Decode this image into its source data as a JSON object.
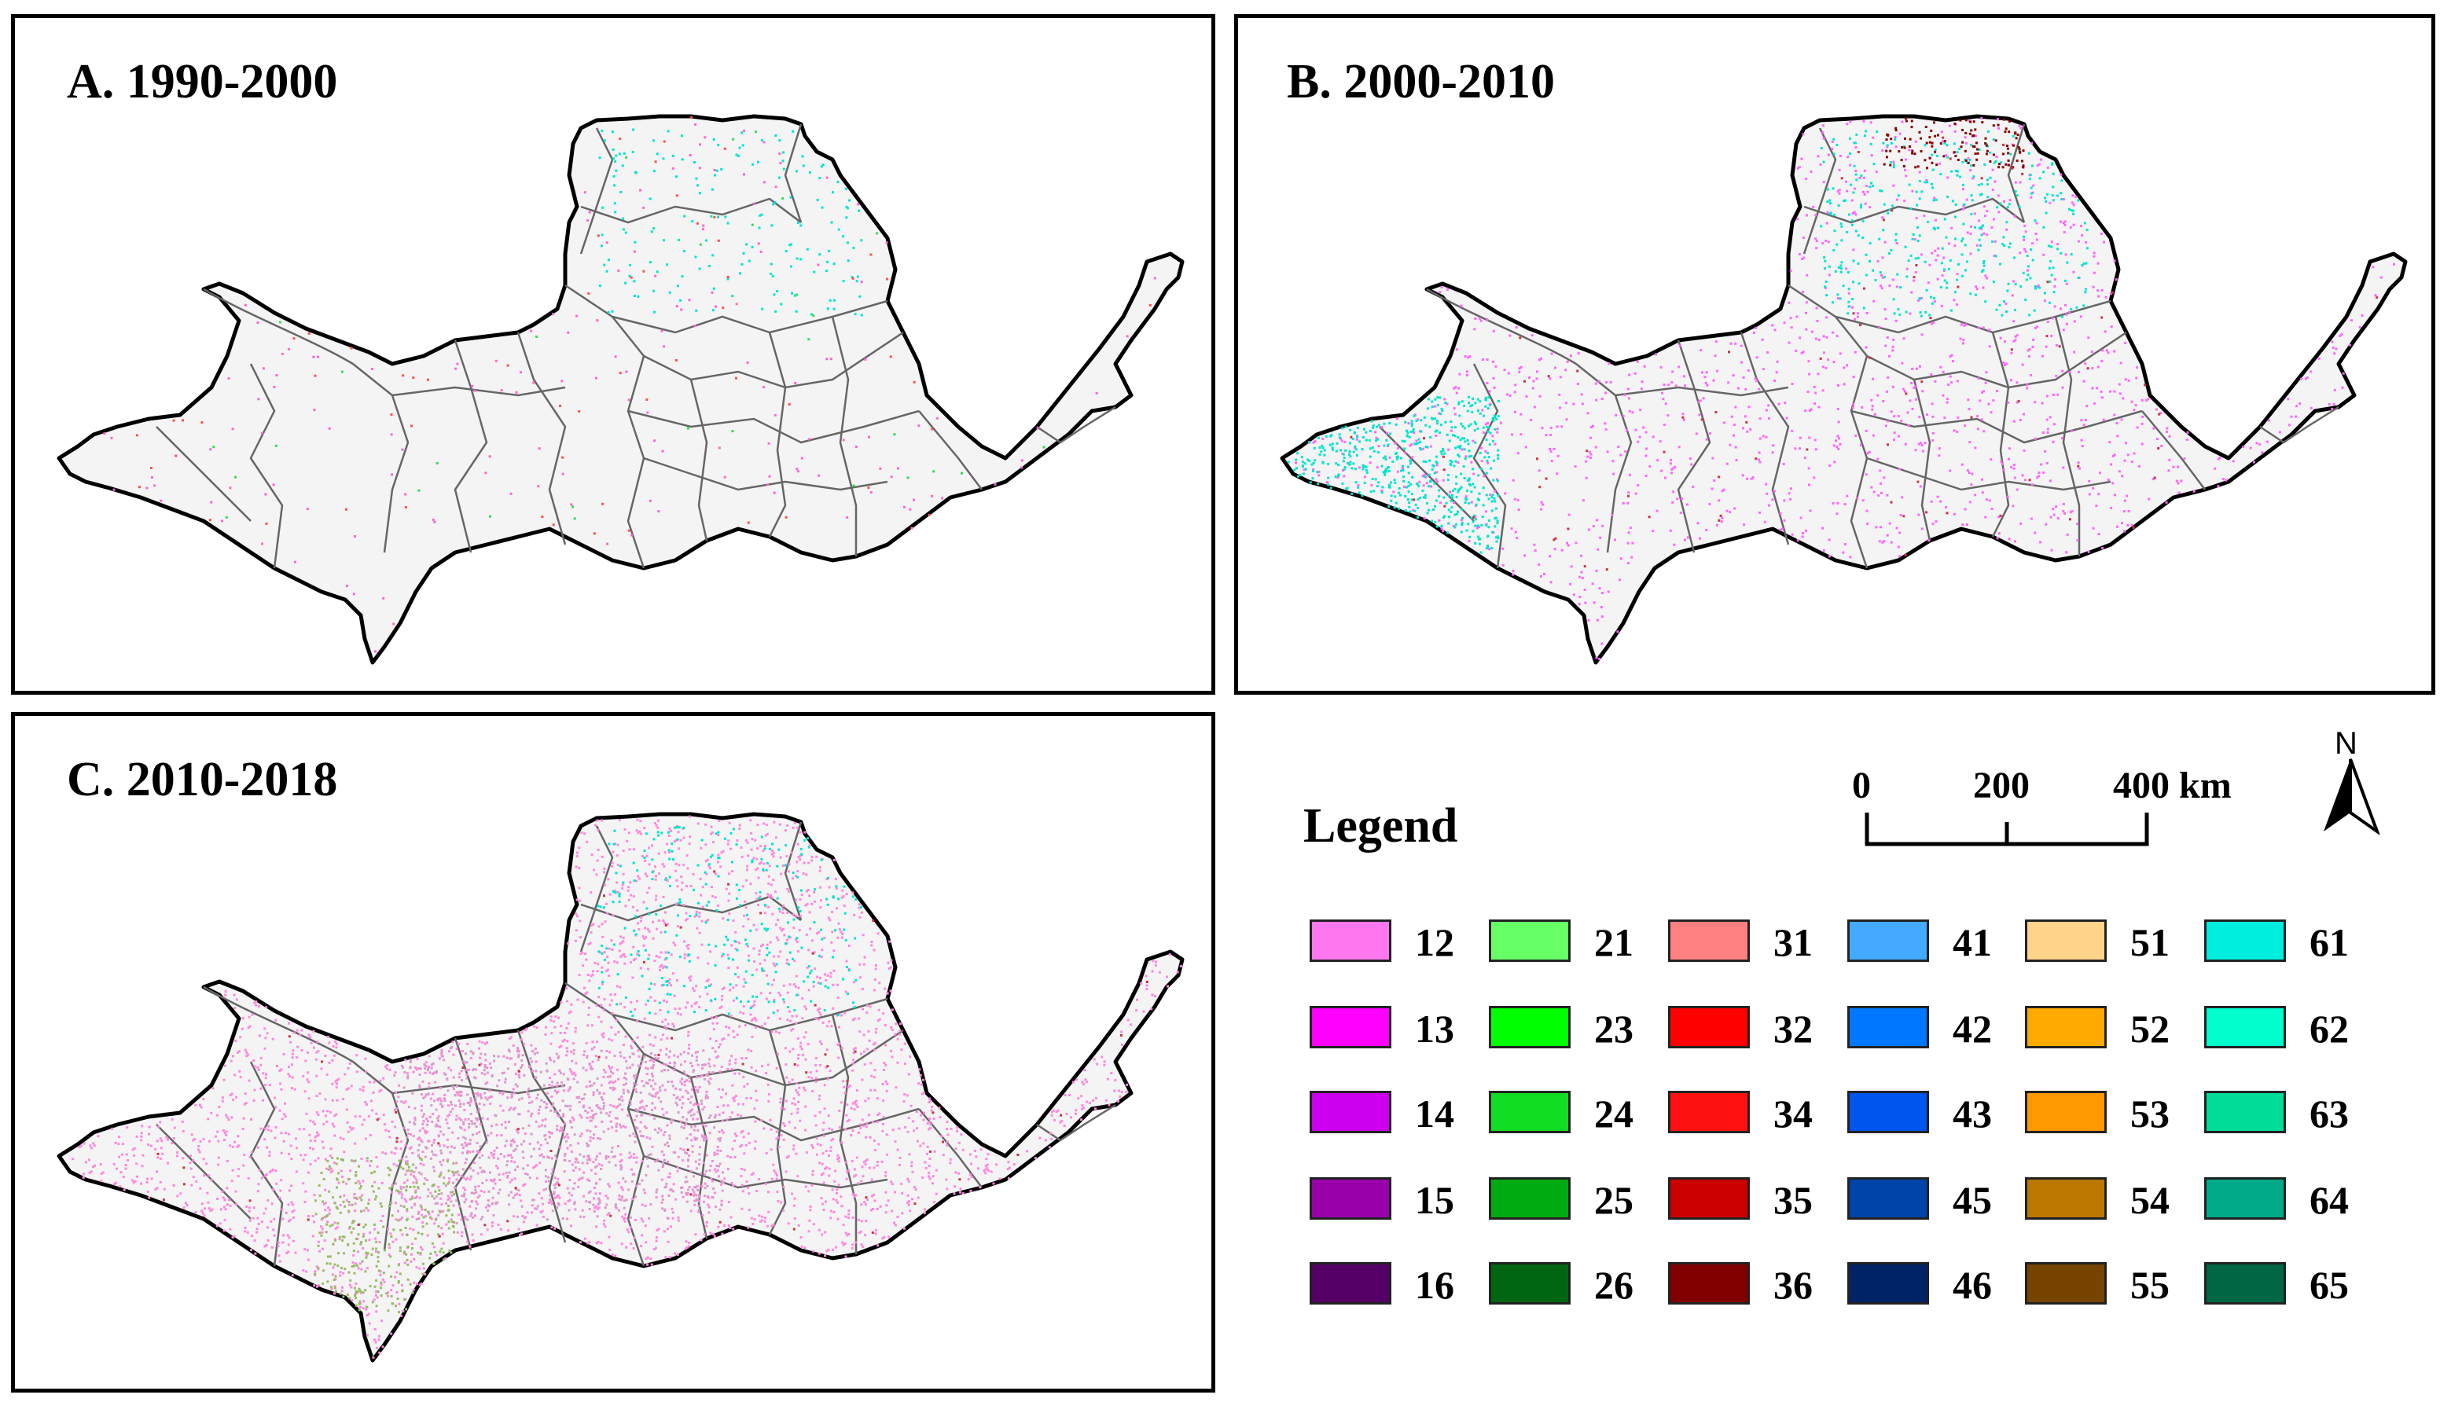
{
  "panels": [
    {
      "id": "a",
      "title": "A. 1990-2000",
      "dots": [
        {
          "color": "#ff66cc",
          "count": 160
        },
        {
          "color": "#00e5cc",
          "count": 180,
          "region": "north"
        },
        {
          "color": "#ff5050",
          "count": 60
        },
        {
          "color": "#33dd55",
          "count": 30
        }
      ]
    },
    {
      "id": "b",
      "title": "B. 2000-2010",
      "dots": [
        {
          "color": "#ff66ff",
          "count": 1300
        },
        {
          "color": "#00e5cc",
          "count": 500,
          "region": "west"
        },
        {
          "color": "#00e5cc",
          "count": 350,
          "region": "north"
        },
        {
          "color": "#8b0000",
          "count": 120,
          "region": "top"
        },
        {
          "color": "#cc3344",
          "count": 80
        }
      ]
    },
    {
      "id": "c",
      "title": "C. 2010-2018",
      "dots": [
        {
          "color": "#ff88dd",
          "count": 3000
        },
        {
          "color": "#dd99cc",
          "count": 900,
          "region": "center"
        },
        {
          "color": "#00e5cc",
          "count": 260,
          "region": "north"
        },
        {
          "color": "#99bb66",
          "count": 300,
          "region": "southwest"
        },
        {
          "color": "#cc3344",
          "count": 60
        }
      ]
    }
  ],
  "legend": {
    "title": "Legend",
    "scale": {
      "labels": [
        "0",
        "200",
        "400 km"
      ]
    },
    "north": "N",
    "columns": [
      [
        {
          "label": "12",
          "color": "#ff77ee"
        },
        {
          "label": "13",
          "color": "#ff00ff"
        },
        {
          "label": "14",
          "color": "#cc00ee"
        },
        {
          "label": "15",
          "color": "#9900aa"
        },
        {
          "label": "16",
          "color": "#550066"
        }
      ],
      [
        {
          "label": "21",
          "color": "#66ff66"
        },
        {
          "label": "23",
          "color": "#00ff00"
        },
        {
          "label": "24",
          "color": "#11dd22"
        },
        {
          "label": "25",
          "color": "#00aa11"
        },
        {
          "label": "26",
          "color": "#006611"
        }
      ],
      [
        {
          "label": "31",
          "color": "#ff8080"
        },
        {
          "label": "32",
          "color": "#ff0000"
        },
        {
          "label": "34",
          "color": "#ff1111"
        },
        {
          "label": "35",
          "color": "#cc0000"
        },
        {
          "label": "36",
          "color": "#800000"
        }
      ],
      [
        {
          "label": "41",
          "color": "#44aaff"
        },
        {
          "label": "42",
          "color": "#0077ff"
        },
        {
          "label": "43",
          "color": "#0055ee"
        },
        {
          "label": "45",
          "color": "#0044aa"
        },
        {
          "label": "46",
          "color": "#002266"
        }
      ],
      [
        {
          "label": "51",
          "color": "#ffd38a"
        },
        {
          "label": "52",
          "color": "#ffaa00"
        },
        {
          "label": "53",
          "color": "#ff9900"
        },
        {
          "label": "54",
          "color": "#bb7700"
        },
        {
          "label": "55",
          "color": "#774400"
        }
      ],
      [
        {
          "label": "61",
          "color": "#00eedd"
        },
        {
          "label": "62",
          "color": "#00ffcc"
        },
        {
          "label": "63",
          "color": "#00dd99"
        },
        {
          "label": "64",
          "color": "#00aa88"
        },
        {
          "label": "65",
          "color": "#006644"
        }
      ]
    ]
  }
}
